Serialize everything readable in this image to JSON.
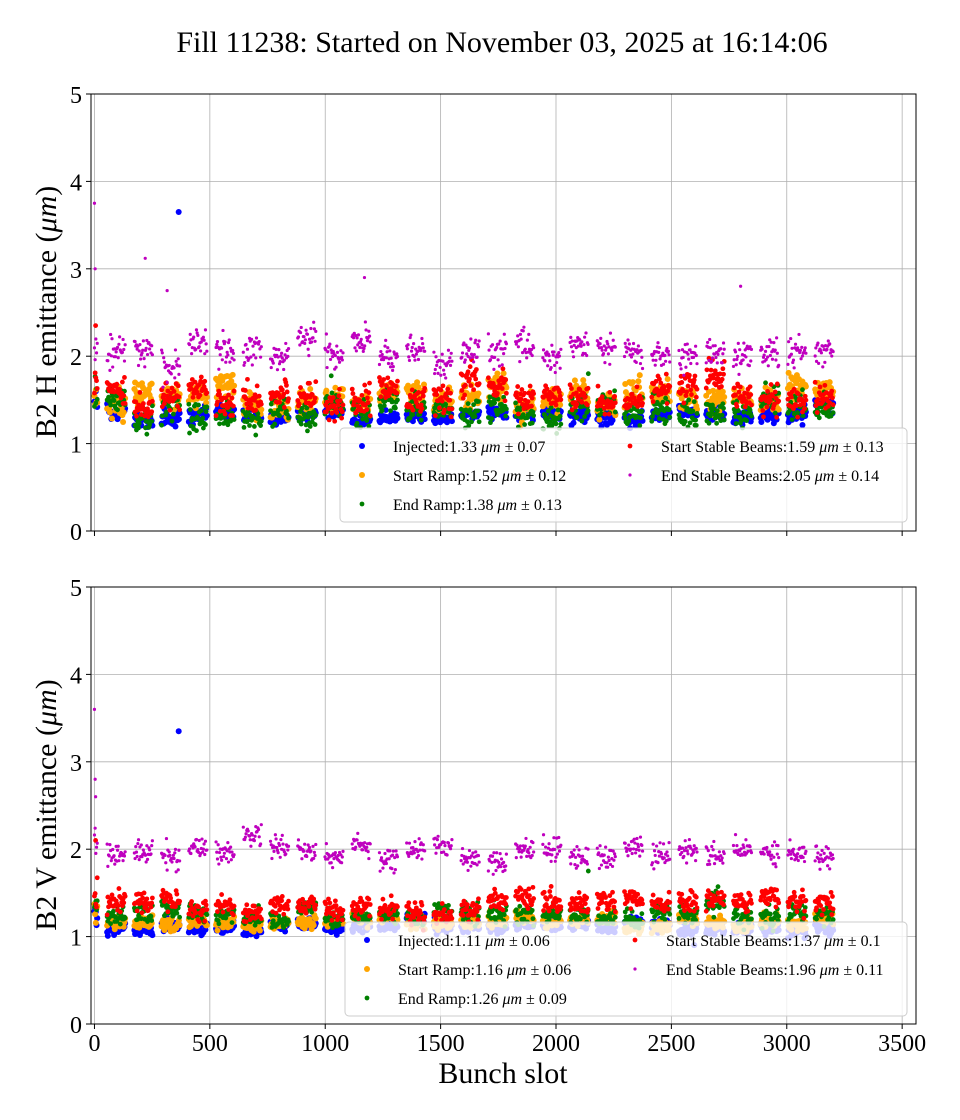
{
  "figure": {
    "title": "Fill 11238: Started on November 03, 2025 at 16:14:06",
    "xlabel": "Bunch slot"
  },
  "chart_data": [
    {
      "type": "scatter",
      "ylabel_prefix": "B2 H emittance (",
      "ylabel_unit": "μm",
      "ylabel_suffix": ")",
      "xlim": [
        0,
        3500
      ],
      "ylim": [
        0,
        5
      ],
      "xticks": [
        0,
        500,
        1000,
        1500,
        2000,
        2500,
        3000,
        3500
      ],
      "yticks": [
        0,
        1,
        2,
        3,
        4,
        5
      ],
      "grid": true,
      "legend_position": "lower-right",
      "x_range_filled": [
        0,
        3230
      ],
      "series": [
        {
          "name": "Injected",
          "mean": 1.33,
          "std": 0.07,
          "color": "#0000ff",
          "marker_size": "medium",
          "outliers": [
            {
              "x": 365,
              "y": 3.65
            }
          ]
        },
        {
          "name": "Start Ramp",
          "mean": 1.52,
          "std": 0.12,
          "color": "#ffa500",
          "marker_size": "medium",
          "outliers": []
        },
        {
          "name": "End Ramp",
          "mean": 1.38,
          "std": 0.13,
          "color": "#008000",
          "marker_size": "small",
          "outliers": [
            {
              "x": 2140,
              "y": 1.8
            }
          ]
        },
        {
          "name": "Start Stable Beams",
          "mean": 1.59,
          "std": 0.13,
          "color": "#ff0000",
          "marker_size": "small",
          "outliers": [
            {
              "x": 5,
              "y": 2.35
            }
          ]
        },
        {
          "name": "End Stable Beams",
          "mean": 2.05,
          "std": 0.14,
          "color": "#bf00bf",
          "marker_size": "tiny",
          "outliers": [
            {
              "x": 0,
              "y": 3.75
            },
            {
              "x": 3,
              "y": 3.0
            },
            {
              "x": 220,
              "y": 3.12
            },
            {
              "x": 315,
              "y": 2.75
            },
            {
              "x": 1170,
              "y": 2.9
            },
            {
              "x": 2800,
              "y": 2.8
            }
          ]
        }
      ],
      "legend_entries": [
        {
          "label": "Injected:1.33 ",
          "unit": "μm",
          "pm": " ± 0.07"
        },
        {
          "label": "Start Stable Beams:1.59 ",
          "unit": "μm",
          "pm": " ± 0.13"
        },
        {
          "label": "Start Ramp:1.52 ",
          "unit": "μm",
          "pm": " ± 0.12"
        },
        {
          "label": "End Stable Beams:2.05 ",
          "unit": "μm",
          "pm": " ± 0.14"
        },
        {
          "label": "End Ramp:1.38 ",
          "unit": "μm",
          "pm": " ± 0.13"
        }
      ]
    },
    {
      "type": "scatter",
      "ylabel_prefix": "B2 V emittance (",
      "ylabel_unit": "μm",
      "ylabel_suffix": ")",
      "xlim": [
        0,
        3500
      ],
      "ylim": [
        0,
        5
      ],
      "xticks": [
        0,
        500,
        1000,
        1500,
        2000,
        2500,
        3000,
        3500
      ],
      "yticks": [
        0,
        1,
        2,
        3,
        4,
        5
      ],
      "grid": true,
      "legend_position": "lower-right",
      "x_range_filled": [
        0,
        3230
      ],
      "series": [
        {
          "name": "Injected",
          "mean": 1.11,
          "std": 0.06,
          "color": "#0000ff",
          "marker_size": "medium",
          "outliers": [
            {
              "x": 365,
              "y": 3.35
            }
          ]
        },
        {
          "name": "Start Ramp",
          "mean": 1.16,
          "std": 0.06,
          "color": "#ffa500",
          "marker_size": "medium",
          "outliers": []
        },
        {
          "name": "End Ramp",
          "mean": 1.26,
          "std": 0.09,
          "color": "#008000",
          "marker_size": "small",
          "outliers": [
            {
              "x": 2140,
              "y": 1.75
            }
          ]
        },
        {
          "name": "Start Stable Beams",
          "mean": 1.37,
          "std": 0.1,
          "color": "#ff0000",
          "marker_size": "small",
          "outliers": [
            {
              "x": 5,
              "y": 2.1
            }
          ]
        },
        {
          "name": "End Stable Beams",
          "mean": 1.96,
          "std": 0.11,
          "color": "#bf00bf",
          "marker_size": "tiny",
          "outliers": [
            {
              "x": 0,
              "y": 3.6
            },
            {
              "x": 3,
              "y": 2.8
            },
            {
              "x": 5,
              "y": 2.6
            }
          ]
        }
      ],
      "legend_entries": [
        {
          "label": "Injected:1.11 ",
          "unit": "μm",
          "pm": " ± 0.06"
        },
        {
          "label": "Start Stable Beams:1.37 ",
          "unit": "μm",
          "pm": " ± 0.1"
        },
        {
          "label": "Start Ramp:1.16 ",
          "unit": "μm",
          "pm": " ± 0.06"
        },
        {
          "label": "End Stable Beams:1.96 ",
          "unit": "μm",
          "pm": " ± 0.11"
        },
        {
          "label": "End Ramp:1.26 ",
          "unit": "μm",
          "pm": " ± 0.09"
        }
      ]
    }
  ]
}
